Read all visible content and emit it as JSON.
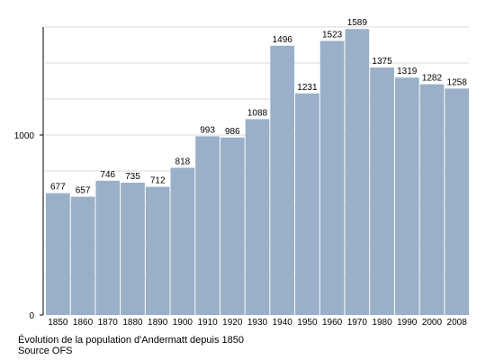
{
  "caption": {
    "line1": "Évolution de la population d'Andermatt depuis 1850",
    "line2": "Source OFS"
  },
  "chart_data": {
    "type": "bar",
    "title": "",
    "xlabel": "",
    "ylabel": "",
    "ylim": [
      0,
      1600
    ],
    "y_ticks": [
      0,
      1000
    ],
    "grid": true,
    "bar_color": "#99b0c8",
    "categories": [
      "1850",
      "1860",
      "1870",
      "1880",
      "1890",
      "1900",
      "1910",
      "1920",
      "1930",
      "1940",
      "1950",
      "1960",
      "1970",
      "1980",
      "1990",
      "2000",
      "2008"
    ],
    "values": [
      677,
      657,
      746,
      735,
      712,
      818,
      993,
      986,
      1088,
      1496,
      1231,
      1523,
      1589,
      1375,
      1319,
      1282,
      1258
    ]
  }
}
